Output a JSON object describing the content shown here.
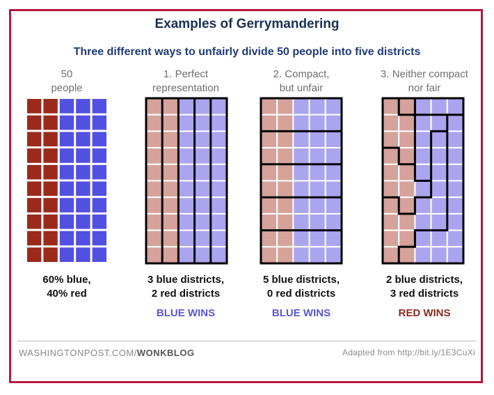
{
  "title": "Examples of Gerrymandering",
  "subtitle": "Three different ways to unfairly divide 50 people into five districts",
  "colors": {
    "red_solid": "#9a2a1c",
    "blue_solid": "#5250e0",
    "red_light": "#d6a29c",
    "blue_light": "#aaa5ee",
    "blue_wins": "#5a57d8",
    "red_wins": "#8f2a1d",
    "frame": "#b5173a"
  },
  "panels": [
    {
      "heading": [
        "50",
        "people"
      ],
      "caption": [
        "60% blue,",
        "40% red"
      ],
      "winner": ""
    },
    {
      "heading": [
        "1. Perfect",
        "representation"
      ],
      "caption": [
        "3 blue districts,",
        "2 red districts"
      ],
      "winner": "BLUE WINS",
      "winner_color": "blue"
    },
    {
      "heading": [
        "2. Compact,",
        "but unfair"
      ],
      "caption": [
        "5 blue districts,",
        "0 red districts"
      ],
      "winner": "BLUE WINS",
      "winner_color": "blue"
    },
    {
      "heading": [
        "3. Neither compact",
        "nor fair"
      ],
      "caption": [
        "2 blue districts,",
        "3 red districts"
      ],
      "winner": "RED WINS",
      "winner_color": "red"
    }
  ],
  "grid": {
    "columns": 5,
    "rows": 10,
    "cells": [
      [
        "R",
        "R",
        "B",
        "B",
        "B"
      ],
      [
        "R",
        "R",
        "B",
        "B",
        "B"
      ],
      [
        "R",
        "R",
        "B",
        "B",
        "B"
      ],
      [
        "R",
        "R",
        "B",
        "B",
        "B"
      ],
      [
        "R",
        "R",
        "B",
        "B",
        "B"
      ],
      [
        "R",
        "R",
        "B",
        "B",
        "B"
      ],
      [
        "R",
        "R",
        "B",
        "B",
        "B"
      ],
      [
        "R",
        "R",
        "B",
        "B",
        "B"
      ],
      [
        "R",
        "R",
        "B",
        "B",
        "B"
      ],
      [
        "R",
        "R",
        "B",
        "B",
        "B"
      ]
    ]
  },
  "footer": {
    "source_plain": "WASHINGTONPOST.COM/",
    "source_bold": "WONKBLOG",
    "credit": "Adapted from http://bit.ly/1E3CuXi"
  }
}
